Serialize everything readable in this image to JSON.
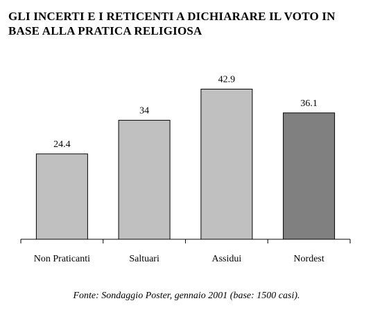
{
  "title_lines": [
    "GLI INCERTI E I RETICENTI A DICHIARARE IL VOTO IN",
    "BASE ALLA PRATICA RELIGIOSA"
  ],
  "source": "Fonte: Sondaggio Poster, gennaio 2001 (base: 1500 casi).",
  "chart_data": {
    "type": "bar",
    "title": "GLI INCERTI E I RETICENTI A DICHIARARE IL VOTO IN BASE ALLA PRATICA RELIGIOSA",
    "categories": [
      "Non Praticanti",
      "Saltuari",
      "Assidui",
      "Nordest"
    ],
    "values": [
      24.4,
      34,
      42.9,
      36.1
    ],
    "value_labels": [
      "24.4",
      "34",
      "42.9",
      "36.1"
    ],
    "bar_colors": [
      "#c0c0c0",
      "#c0c0c0",
      "#c0c0c0",
      "#808080"
    ],
    "xlabel": "",
    "ylabel": "",
    "ylim": [
      0,
      50
    ],
    "grid": false,
    "legend": "none"
  }
}
